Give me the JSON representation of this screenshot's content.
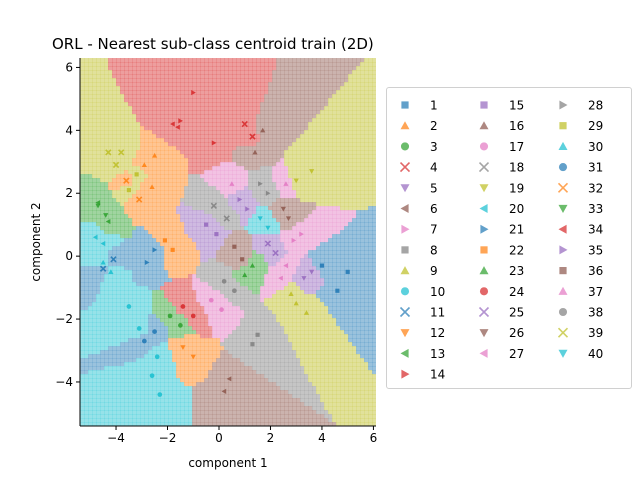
{
  "chart_data": {
    "type": "scatter",
    "title": "ORL - Nearest sub-class centroid train (2D)",
    "xlabel": "component 1",
    "ylabel": "component 2",
    "xlim": [
      -5.4,
      6.1
    ],
    "ylim": [
      -5.4,
      6.3
    ],
    "xticks": [
      -4,
      -2,
      0,
      2,
      4,
      6
    ],
    "yticks": [
      -4,
      -2,
      0,
      2,
      4,
      6
    ],
    "x_tick_labels": [
      "−4",
      "−2",
      "0",
      "2",
      "4",
      "6"
    ],
    "y_tick_labels": [
      "−4",
      "−2",
      "0",
      "2",
      "4",
      "6"
    ],
    "grid": false,
    "background": "voronoi decision regions (nearest sub-class centroid), black boundaries",
    "legend_position": "right",
    "legend_columns": 3,
    "classes": [
      {
        "label": "1",
        "marker": "square",
        "color": "#1f77b4"
      },
      {
        "label": "2",
        "marker": "triangle-up",
        "color": "#ff7f0e"
      },
      {
        "label": "3",
        "marker": "circle",
        "color": "#2ca02c"
      },
      {
        "label": "4",
        "marker": "x",
        "color": "#d62728"
      },
      {
        "label": "5",
        "marker": "triangle-down",
        "color": "#9467bd"
      },
      {
        "label": "6",
        "marker": "triangle-left",
        "color": "#8c564b"
      },
      {
        "label": "7",
        "marker": "triangle-right",
        "color": "#e377c2"
      },
      {
        "label": "8",
        "marker": "square",
        "color": "#7f7f7f"
      },
      {
        "label": "9",
        "marker": "triangle-up",
        "color": "#bcbd22"
      },
      {
        "label": "10",
        "marker": "circle",
        "color": "#17becf"
      },
      {
        "label": "11",
        "marker": "x",
        "color": "#1f77b4"
      },
      {
        "label": "12",
        "marker": "triangle-down",
        "color": "#ff7f0e"
      },
      {
        "label": "13",
        "marker": "triangle-left",
        "color": "#2ca02c"
      },
      {
        "label": "14",
        "marker": "triangle-right",
        "color": "#d62728"
      },
      {
        "label": "15",
        "marker": "square",
        "color": "#9467bd"
      },
      {
        "label": "16",
        "marker": "triangle-up",
        "color": "#8c564b"
      },
      {
        "label": "17",
        "marker": "circle",
        "color": "#e377c2"
      },
      {
        "label": "18",
        "marker": "x",
        "color": "#7f7f7f"
      },
      {
        "label": "19",
        "marker": "triangle-down",
        "color": "#bcbd22"
      },
      {
        "label": "20",
        "marker": "triangle-left",
        "color": "#17becf"
      },
      {
        "label": "21",
        "marker": "triangle-right",
        "color": "#1f77b4"
      },
      {
        "label": "22",
        "marker": "square",
        "color": "#ff7f0e"
      },
      {
        "label": "23",
        "marker": "triangle-up",
        "color": "#2ca02c"
      },
      {
        "label": "24",
        "marker": "circle",
        "color": "#d62728"
      },
      {
        "label": "25",
        "marker": "x",
        "color": "#9467bd"
      },
      {
        "label": "26",
        "marker": "triangle-down",
        "color": "#8c564b"
      },
      {
        "label": "27",
        "marker": "triangle-left",
        "color": "#e377c2"
      },
      {
        "label": "28",
        "marker": "triangle-right",
        "color": "#7f7f7f"
      },
      {
        "label": "29",
        "marker": "square",
        "color": "#bcbd22"
      },
      {
        "label": "30",
        "marker": "triangle-up",
        "color": "#17becf"
      },
      {
        "label": "31",
        "marker": "circle",
        "color": "#1f77b4"
      },
      {
        "label": "32",
        "marker": "x",
        "color": "#ff7f0e"
      },
      {
        "label": "33",
        "marker": "triangle-down",
        "color": "#2ca02c"
      },
      {
        "label": "34",
        "marker": "triangle-left",
        "color": "#d62728"
      },
      {
        "label": "35",
        "marker": "triangle-right",
        "color": "#9467bd"
      },
      {
        "label": "36",
        "marker": "square",
        "color": "#8c564b"
      },
      {
        "label": "37",
        "marker": "triangle-up",
        "color": "#e377c2"
      },
      {
        "label": "38",
        "marker": "circle",
        "color": "#7f7f7f"
      },
      {
        "label": "39",
        "marker": "x",
        "color": "#bcbd22"
      },
      {
        "label": "40",
        "marker": "triangle-down",
        "color": "#17becf"
      }
    ],
    "points": [
      {
        "class": "1",
        "x": 5.0,
        "y": -0.5
      },
      {
        "class": "1",
        "x": 4.6,
        "y": -1.1
      },
      {
        "class": "1",
        "x": 4.0,
        "y": -0.3
      },
      {
        "class": "2",
        "x": -2.5,
        "y": 3.2
      },
      {
        "class": "2",
        "x": -2.9,
        "y": 2.9
      },
      {
        "class": "2",
        "x": -2.6,
        "y": 2.2
      },
      {
        "class": "3",
        "x": -1.9,
        "y": -1.9
      },
      {
        "class": "3",
        "x": -1.5,
        "y": -2.2
      },
      {
        "class": "4",
        "x": 1.0,
        "y": 4.2
      },
      {
        "class": "4",
        "x": 1.3,
        "y": 3.8
      },
      {
        "class": "5",
        "x": 3.6,
        "y": -0.5
      },
      {
        "class": "5",
        "x": 3.3,
        "y": -0.7
      },
      {
        "class": "6",
        "x": 0.4,
        "y": -3.9
      },
      {
        "class": "6",
        "x": 0.2,
        "y": -4.3
      },
      {
        "class": "7",
        "x": 2.9,
        "y": 0.5
      },
      {
        "class": "7",
        "x": 3.2,
        "y": 0.7
      },
      {
        "class": "8",
        "x": 1.3,
        "y": -2.8
      },
      {
        "class": "8",
        "x": 1.5,
        "y": -2.5
      },
      {
        "class": "9",
        "x": 3.0,
        "y": -1.5
      },
      {
        "class": "9",
        "x": 3.4,
        "y": -1.8
      },
      {
        "class": "9",
        "x": 2.8,
        "y": -1.2
      },
      {
        "class": "10",
        "x": -3.5,
        "y": -1.6
      },
      {
        "class": "10",
        "x": -3.1,
        "y": -2.3
      },
      {
        "class": "10",
        "x": -2.4,
        "y": -3.2
      },
      {
        "class": "10",
        "x": -2.6,
        "y": -3.8
      },
      {
        "class": "10",
        "x": -2.3,
        "y": -4.4
      },
      {
        "class": "11",
        "x": -4.5,
        "y": -0.4
      },
      {
        "class": "11",
        "x": -4.1,
        "y": -0.1
      },
      {
        "class": "12",
        "x": -1.4,
        "y": -2.9
      },
      {
        "class": "12",
        "x": -1.0,
        "y": -3.2
      },
      {
        "class": "13",
        "x": -4.7,
        "y": 1.7
      },
      {
        "class": "13",
        "x": -4.3,
        "y": 1.1
      },
      {
        "class": "14",
        "x": -1.0,
        "y": 5.2
      },
      {
        "class": "14",
        "x": -1.5,
        "y": 4.3
      },
      {
        "class": "14",
        "x": -0.2,
        "y": 3.6
      },
      {
        "class": "15",
        "x": -0.5,
        "y": 1.0
      },
      {
        "class": "15",
        "x": -0.1,
        "y": 0.7
      },
      {
        "class": "16",
        "x": 1.7,
        "y": 4.0
      },
      {
        "class": "16",
        "x": 1.4,
        "y": 3.3
      },
      {
        "class": "17",
        "x": -0.3,
        "y": -1.4
      },
      {
        "class": "17",
        "x": 0.1,
        "y": -1.7
      },
      {
        "class": "18",
        "x": -0.2,
        "y": 1.6
      },
      {
        "class": "18",
        "x": 0.3,
        "y": 1.2
      },
      {
        "class": "19",
        "x": 3.6,
        "y": 2.7
      },
      {
        "class": "19",
        "x": 3.0,
        "y": 2.4
      },
      {
        "class": "20",
        "x": -4.8,
        "y": 0.6
      },
      {
        "class": "20",
        "x": -4.5,
        "y": 0.4
      },
      {
        "class": "21",
        "x": -2.8,
        "y": -0.2
      },
      {
        "class": "21",
        "x": -2.5,
        "y": 0.2
      },
      {
        "class": "22",
        "x": -2.1,
        "y": 0.5
      },
      {
        "class": "22",
        "x": -1.8,
        "y": 0.2
      },
      {
        "class": "23",
        "x": 1.0,
        "y": -0.6
      },
      {
        "class": "23",
        "x": 1.3,
        "y": -0.3
      },
      {
        "class": "24",
        "x": -1.4,
        "y": -1.6
      },
      {
        "class": "24",
        "x": -1.0,
        "y": -1.9
      },
      {
        "class": "25",
        "x": 1.9,
        "y": 0.4
      },
      {
        "class": "25",
        "x": 2.2,
        "y": 0.1
      },
      {
        "class": "26",
        "x": 2.5,
        "y": 1.5
      },
      {
        "class": "26",
        "x": 2.7,
        "y": 1.2
      },
      {
        "class": "27",
        "x": 2.6,
        "y": -0.3
      },
      {
        "class": "27",
        "x": 2.4,
        "y": -0.7
      },
      {
        "class": "28",
        "x": 1.6,
        "y": 2.3
      },
      {
        "class": "28",
        "x": 1.9,
        "y": 2.0
      },
      {
        "class": "29",
        "x": -3.2,
        "y": 2.6
      },
      {
        "class": "29",
        "x": -3.5,
        "y": 2.1
      },
      {
        "class": "30",
        "x": -4.5,
        "y": -0.2
      },
      {
        "class": "30",
        "x": -4.2,
        "y": -0.5
      },
      {
        "class": "31",
        "x": -2.9,
        "y": -2.7
      },
      {
        "class": "31",
        "x": -2.5,
        "y": -2.4
      },
      {
        "class": "32",
        "x": -3.6,
        "y": 2.4
      },
      {
        "class": "32",
        "x": -3.1,
        "y": 1.8
      },
      {
        "class": "33",
        "x": -4.7,
        "y": 1.6
      },
      {
        "class": "33",
        "x": -4.4,
        "y": 1.3
      },
      {
        "class": "34",
        "x": -1.6,
        "y": 4.1
      },
      {
        "class": "34",
        "x": -1.8,
        "y": 4.2
      },
      {
        "class": "35",
        "x": 0.8,
        "y": 1.8
      },
      {
        "class": "35",
        "x": 1.1,
        "y": 1.5
      },
      {
        "class": "36",
        "x": 0.6,
        "y": 0.3
      },
      {
        "class": "36",
        "x": 0.9,
        "y": -0.1
      },
      {
        "class": "37",
        "x": 0.5,
        "y": 2.3
      },
      {
        "class": "37",
        "x": 2.6,
        "y": 2.3
      },
      {
        "class": "38",
        "x": 0.2,
        "y": -0.8
      },
      {
        "class": "38",
        "x": 0.6,
        "y": -1.1
      },
      {
        "class": "39",
        "x": -4.3,
        "y": 3.3
      },
      {
        "class": "39",
        "x": -3.8,
        "y": 3.3
      },
      {
        "class": "39",
        "x": -4.0,
        "y": 2.9
      },
      {
        "class": "40",
        "x": 1.6,
        "y": 1.2
      },
      {
        "class": "40",
        "x": 1.9,
        "y": 0.9
      }
    ]
  }
}
